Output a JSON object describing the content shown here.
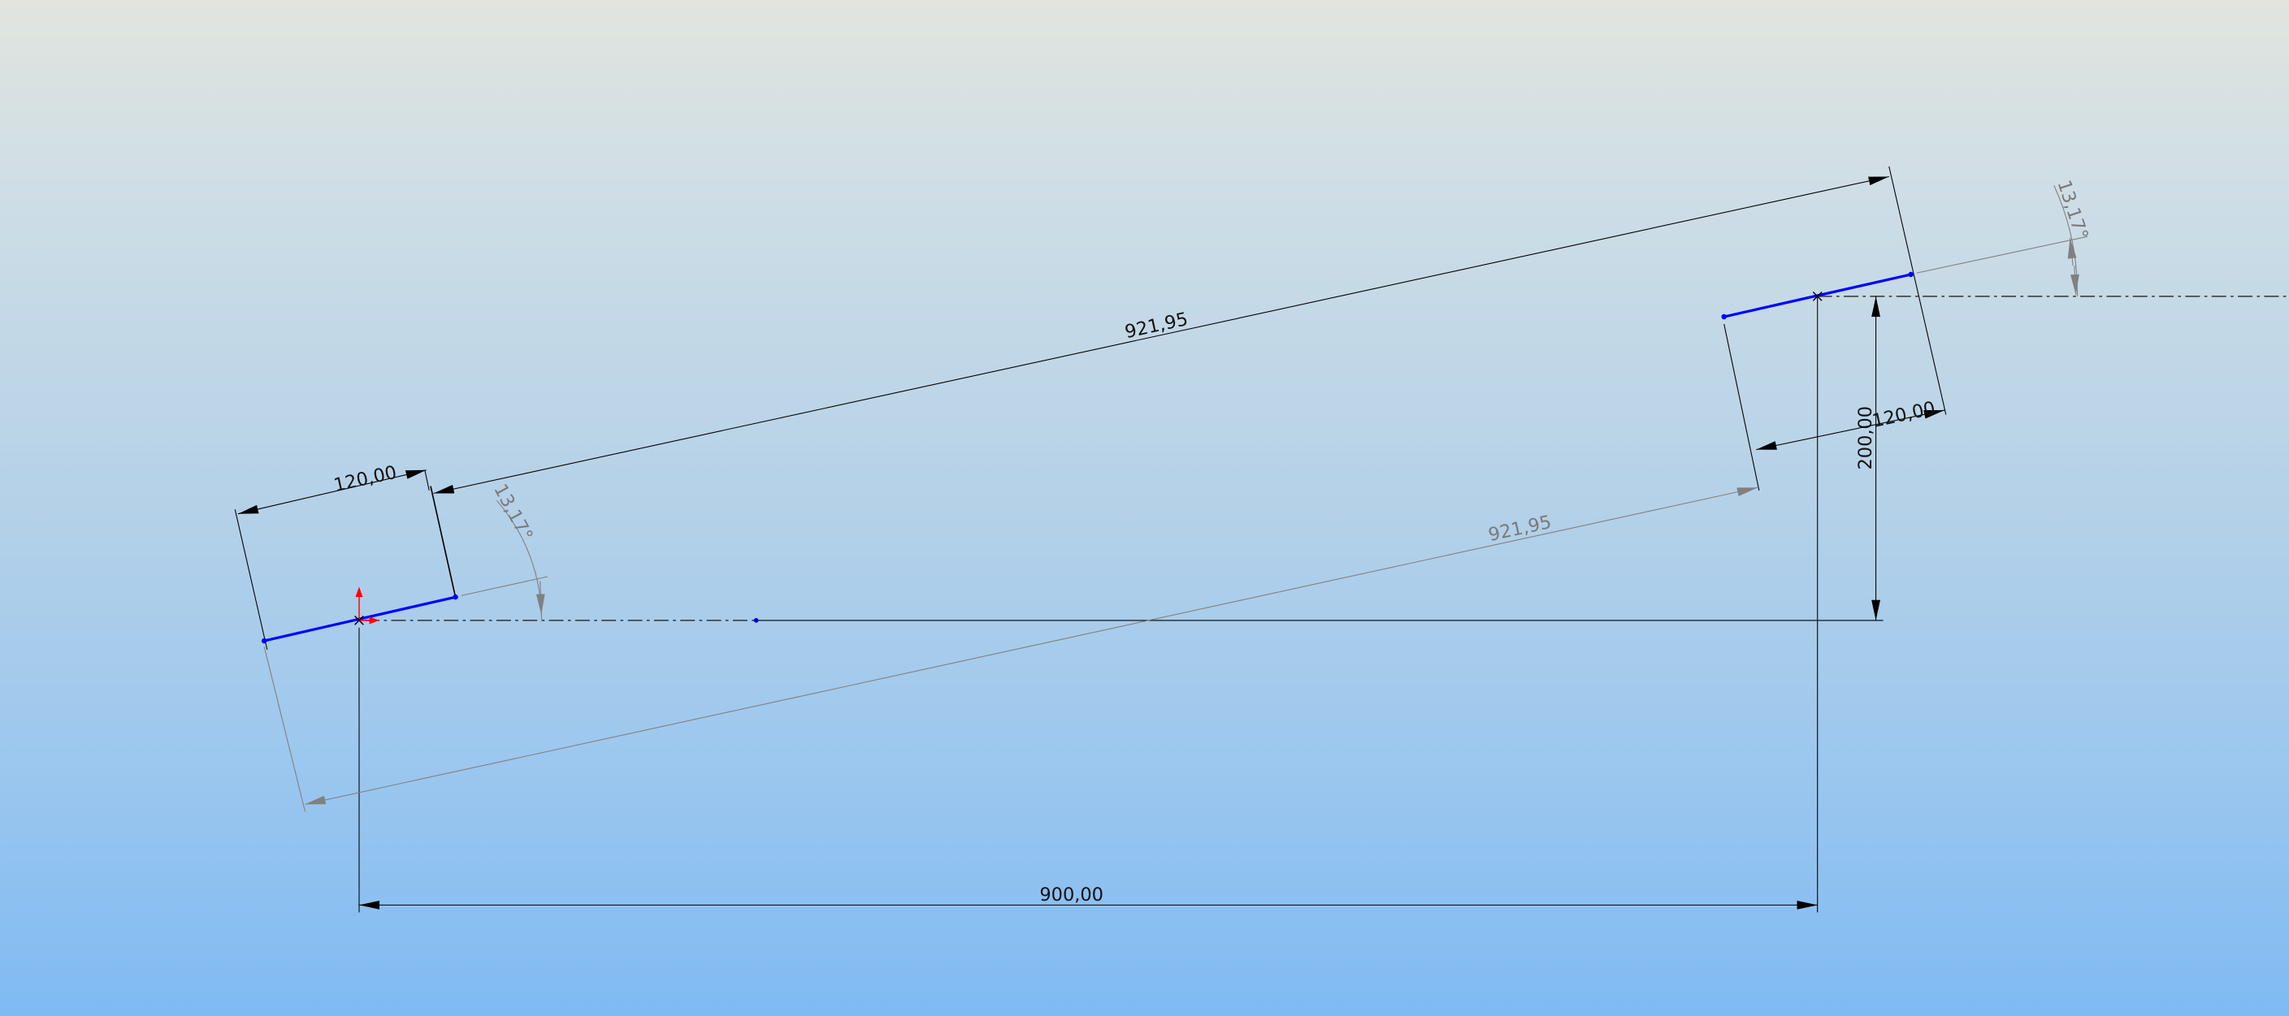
{
  "viewport": {
    "kind": "CAD sketch canvas"
  },
  "colors": {
    "sketch_line": "#0000ff",
    "dimension": "#000000",
    "driven_dimension": "#7a7a7a",
    "origin_axes": "#ff0000"
  },
  "dimensions": {
    "left_segment_length": "120,00",
    "right_segment_length": "120,00",
    "top_distance": "921,95",
    "bottom_distance": "921,95",
    "horizontal_distance": "900,00",
    "vertical_distance": "200,00",
    "left_angle": "13,17°",
    "right_angle": "13,17°"
  }
}
